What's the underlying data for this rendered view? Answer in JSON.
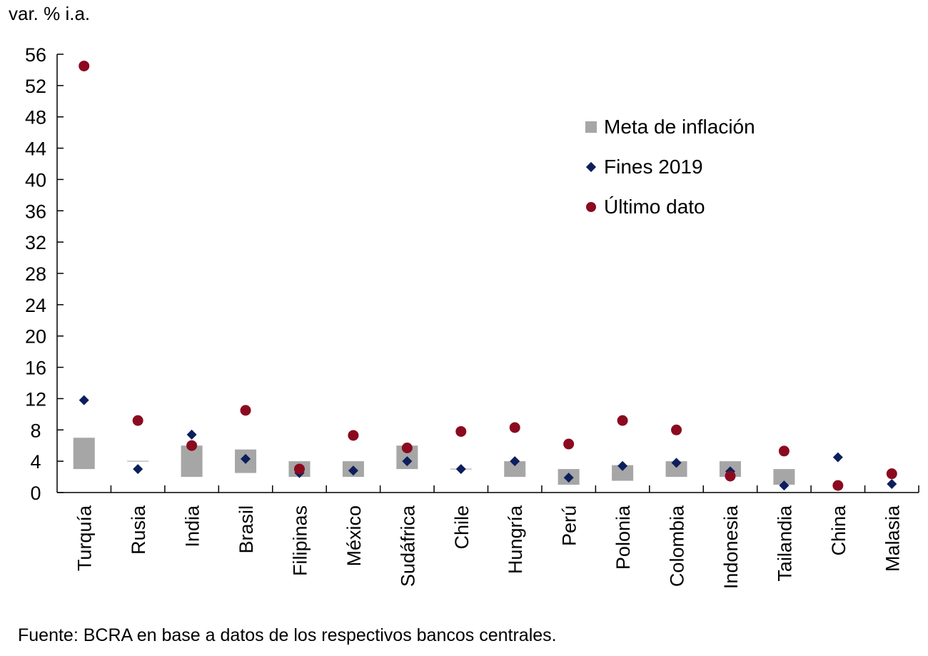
{
  "chart_data": {
    "type": "scatter",
    "title": "",
    "ylabel": "var. % i.a.",
    "xlabel": "",
    "ylim": [
      0,
      56
    ],
    "yticks": [
      0,
      4,
      8,
      12,
      16,
      20,
      24,
      28,
      32,
      36,
      40,
      44,
      48,
      52,
      56
    ],
    "grid": false,
    "legend_position": "top-right",
    "categories": [
      "Turquía",
      "Rusia",
      "India",
      "Brasil",
      "Filipinas",
      "México",
      "Sudáfrica",
      "Chile",
      "Hungría",
      "Perú",
      "Polonia",
      "Colombia",
      "Indonesia",
      "Tailandia",
      "China",
      "Malasia"
    ],
    "series": [
      {
        "name": "Meta de inflación",
        "kind": "range-bar",
        "color": "#a6a6a6",
        "low": [
          3,
          4,
          2,
          2.5,
          2,
          2,
          3,
          3,
          2,
          1,
          1.5,
          2,
          2,
          1,
          null,
          null
        ],
        "high": [
          7,
          4,
          6,
          5.5,
          4,
          4,
          6,
          3,
          4,
          3,
          3.5,
          4,
          4,
          3,
          null,
          null
        ]
      },
      {
        "name": "Fines 2019",
        "kind": "diamond",
        "color": "#0c1f5c",
        "values": [
          11.8,
          3.0,
          7.4,
          4.3,
          2.5,
          2.8,
          4.0,
          3.0,
          4.0,
          1.9,
          3.4,
          3.8,
          2.7,
          0.9,
          4.5,
          1.1
        ]
      },
      {
        "name": "Último dato",
        "kind": "circle",
        "color": "#8b0a1f",
        "values": [
          54.5,
          9.2,
          6.0,
          10.5,
          3.0,
          7.3,
          5.7,
          7.8,
          8.3,
          6.2,
          9.2,
          8.0,
          2.1,
          5.3,
          0.9,
          2.4
        ]
      }
    ],
    "source": "Fuente: BCRA en base a datos de los respectivos bancos centrales."
  }
}
